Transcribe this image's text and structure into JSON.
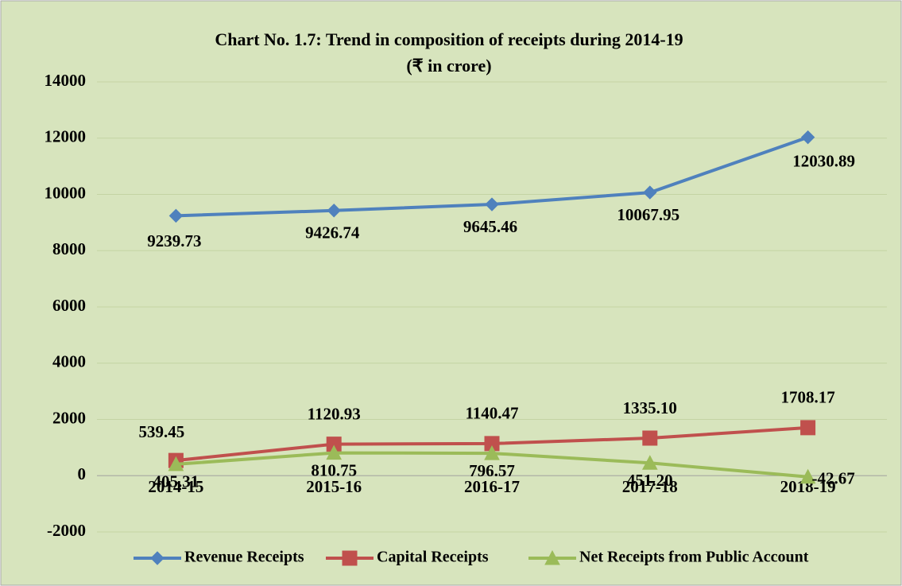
{
  "chart_data": {
    "type": "line",
    "title": "Chart No. 1.7: Trend in composition of receipts during 2014-19",
    "subtitle": "(₹  in crore)",
    "categories": [
      "2014-15",
      "2015-16",
      "2016-17",
      "2017-18",
      "2018-19"
    ],
    "series": [
      {
        "name": "Revenue Receipts",
        "color": "#4f81bd",
        "marker": "diamond",
        "values": [
          9239.73,
          9426.74,
          9645.46,
          10067.95,
          12030.89
        ],
        "value_labels": [
          "9239.73",
          "9426.74",
          "9645.46",
          "10067.95",
          "12030.89"
        ]
      },
      {
        "name": "Capital Receipts",
        "color": "#c0504d",
        "marker": "square",
        "values": [
          539.45,
          1120.93,
          1140.47,
          1335.1,
          1708.17
        ],
        "value_labels": [
          "539.45",
          "1120.93",
          "1140.47",
          "1335.10",
          "1708.17"
        ]
      },
      {
        "name": "Net Receipts from Public Account",
        "color": "#9bbb59",
        "marker": "triangle",
        "values": [
          405.31,
          810.75,
          796.57,
          451.2,
          -42.67
        ],
        "value_labels": [
          "405.31",
          "810.75",
          "796.57",
          "451.20",
          "-42.67"
        ]
      }
    ],
    "ylim": [
      -2000,
      14000
    ],
    "yticks": [
      -2000,
      0,
      2000,
      4000,
      6000,
      8000,
      10000,
      12000,
      14000
    ],
    "grid": true,
    "legend": "bottom"
  }
}
